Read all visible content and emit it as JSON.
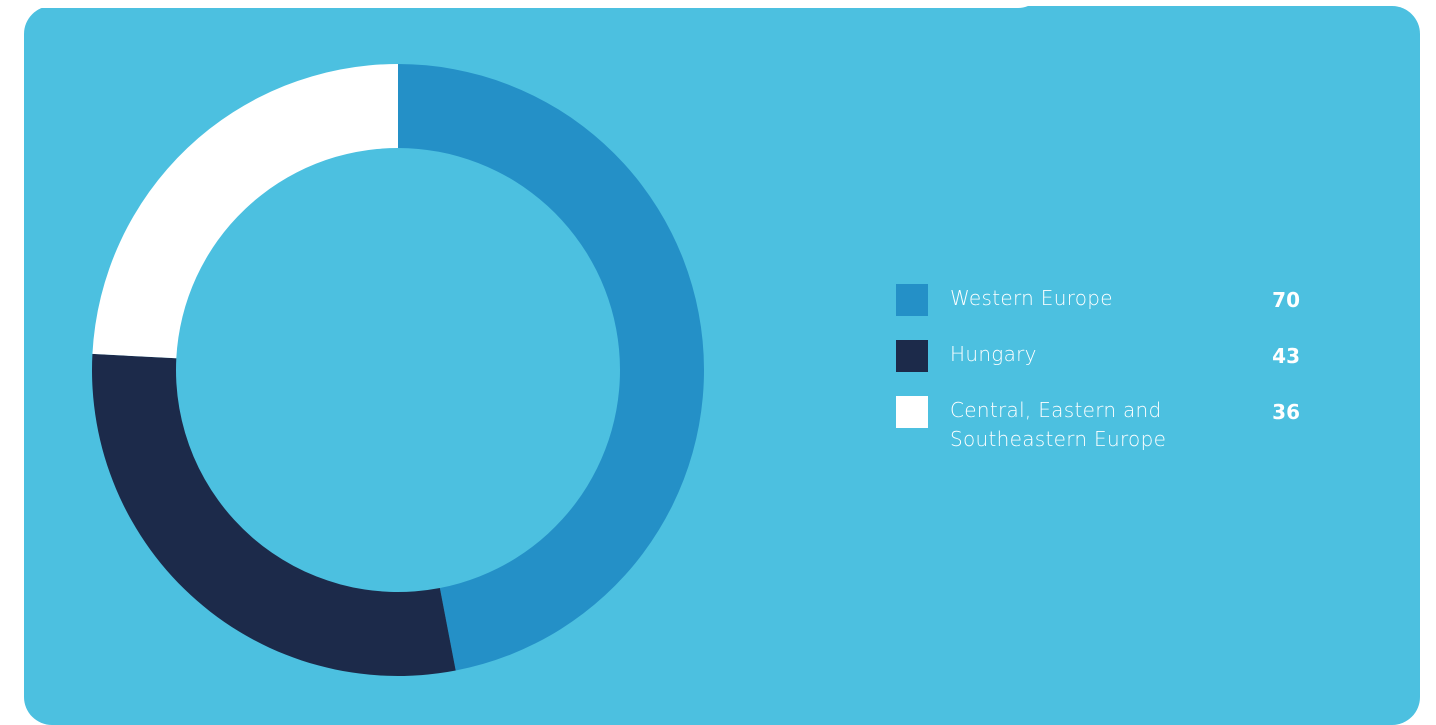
{
  "colors": {
    "panel_background": "#4cc0e0",
    "page_background": "#ffffff"
  },
  "chart_data": {
    "type": "pie",
    "style": "donut",
    "legend_position": "right",
    "categories": [
      "Western Europe",
      "Hungary",
      "Central, Eastern and Southeastern Europe"
    ],
    "values": [
      70,
      43,
      36
    ],
    "colors": [
      "#2490c7",
      "#1c2a4a",
      "#ffffff"
    ]
  }
}
